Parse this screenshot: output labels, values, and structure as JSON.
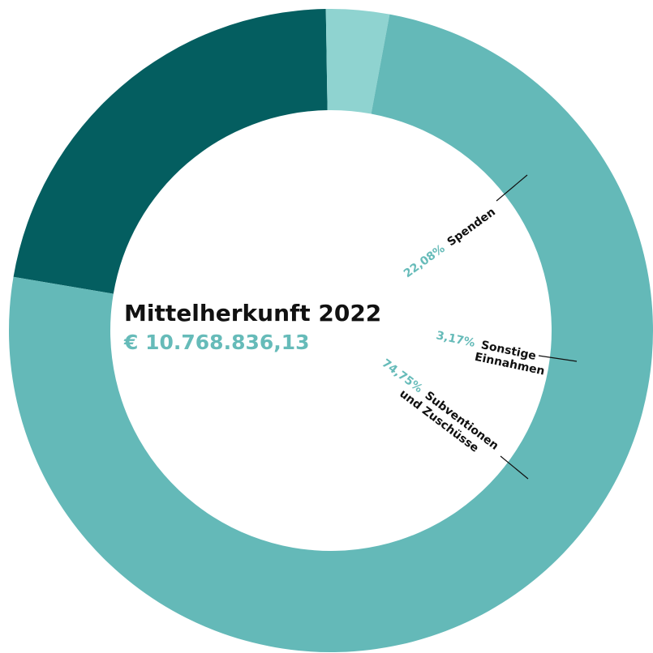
{
  "chart_data": {
    "type": "pie",
    "title": "Mittelherkunft 2022",
    "total": "€ 10.768.836,13",
    "slices": [
      {
        "name": "Spenden",
        "percent_label": "22,08%",
        "value": 22.08,
        "color": "#045e60"
      },
      {
        "name_lines": [
          "Sonstige",
          "Einnahmen"
        ],
        "percent_label": "3,17%",
        "value": 3.17,
        "color": "#8fd3d0"
      },
      {
        "name_lines": [
          "Subventionen",
          "und Zuschüsse"
        ],
        "percent_label": "74,75%",
        "value": 74.75,
        "color": "#64b9b8"
      }
    ],
    "accent_color": "#66bbb9",
    "legend": "none"
  }
}
